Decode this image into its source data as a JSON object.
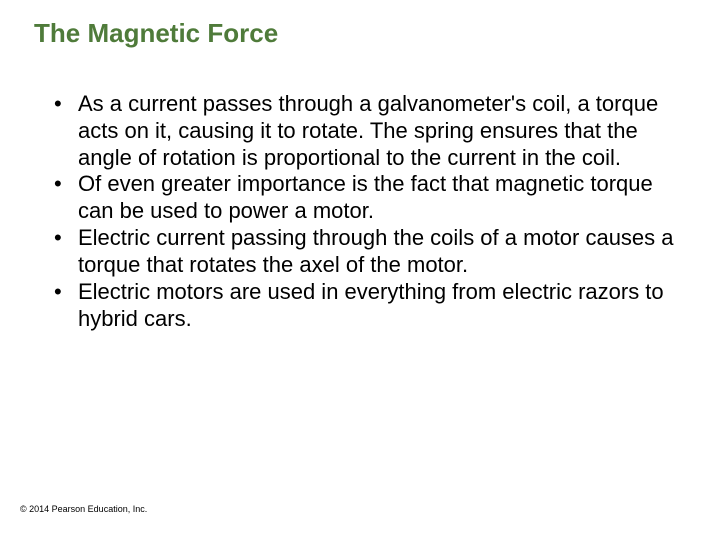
{
  "title": "The Magnetic Force",
  "title_color": "#4f7b3a",
  "title_fontsize": 26,
  "body_fontsize": 22,
  "body_color": "#000000",
  "background_color": "#ffffff",
  "bullets": [
    "As a current passes through a galvanometer's coil, a torque acts on it, causing it to rotate. The spring ensures that the angle of rotation is proportional to the current in the coil.",
    "Of even greater importance is the fact that magnetic torque can be used to power a motor.",
    "Electric current passing through the coils of a motor causes a torque that rotates the axel of the motor.",
    "Electric motors are used in everything from electric razors to hybrid cars."
  ],
  "footer": "© 2014 Pearson Education, Inc."
}
